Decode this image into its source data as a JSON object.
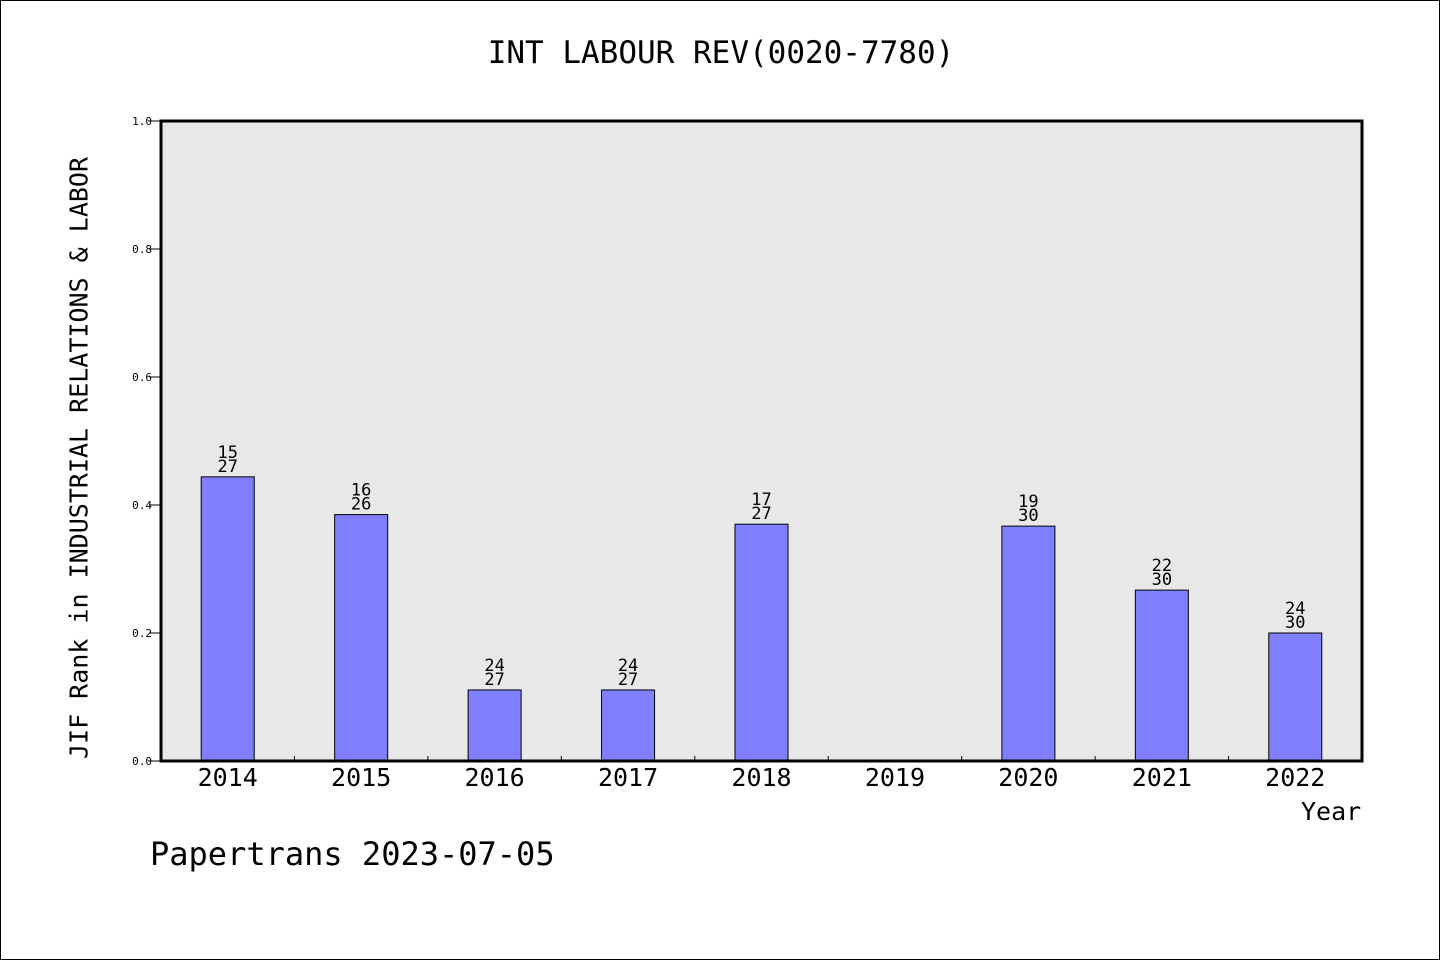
{
  "chart_data": {
    "type": "bar",
    "title": "INT LABOUR REV(0020-7780)",
    "ylabel": "JIF Rank in INDUSTRIAL RELATIONS & LABOR",
    "xlabel": "Year",
    "ylim": [
      0.0,
      1.0
    ],
    "yticks": [
      "0.0",
      "0.2",
      "0.4",
      "0.6",
      "0.8",
      "1.0"
    ],
    "categories": [
      "2014",
      "2015",
      "2016",
      "2017",
      "2018",
      "2019",
      "2020",
      "2021",
      "2022"
    ],
    "values": [
      0.444,
      0.385,
      0.111,
      0.111,
      0.37,
      null,
      0.367,
      0.267,
      0.2
    ],
    "rank": [
      15,
      16,
      24,
      24,
      17,
      null,
      19,
      22,
      24
    ],
    "total": [
      27,
      26,
      27,
      27,
      27,
      null,
      30,
      30,
      30
    ],
    "bar_color": "#8080ff",
    "plot_background": "#e8e8e8",
    "grid": false,
    "legend": "none"
  },
  "footer": "Papertrans 2023-07-05"
}
